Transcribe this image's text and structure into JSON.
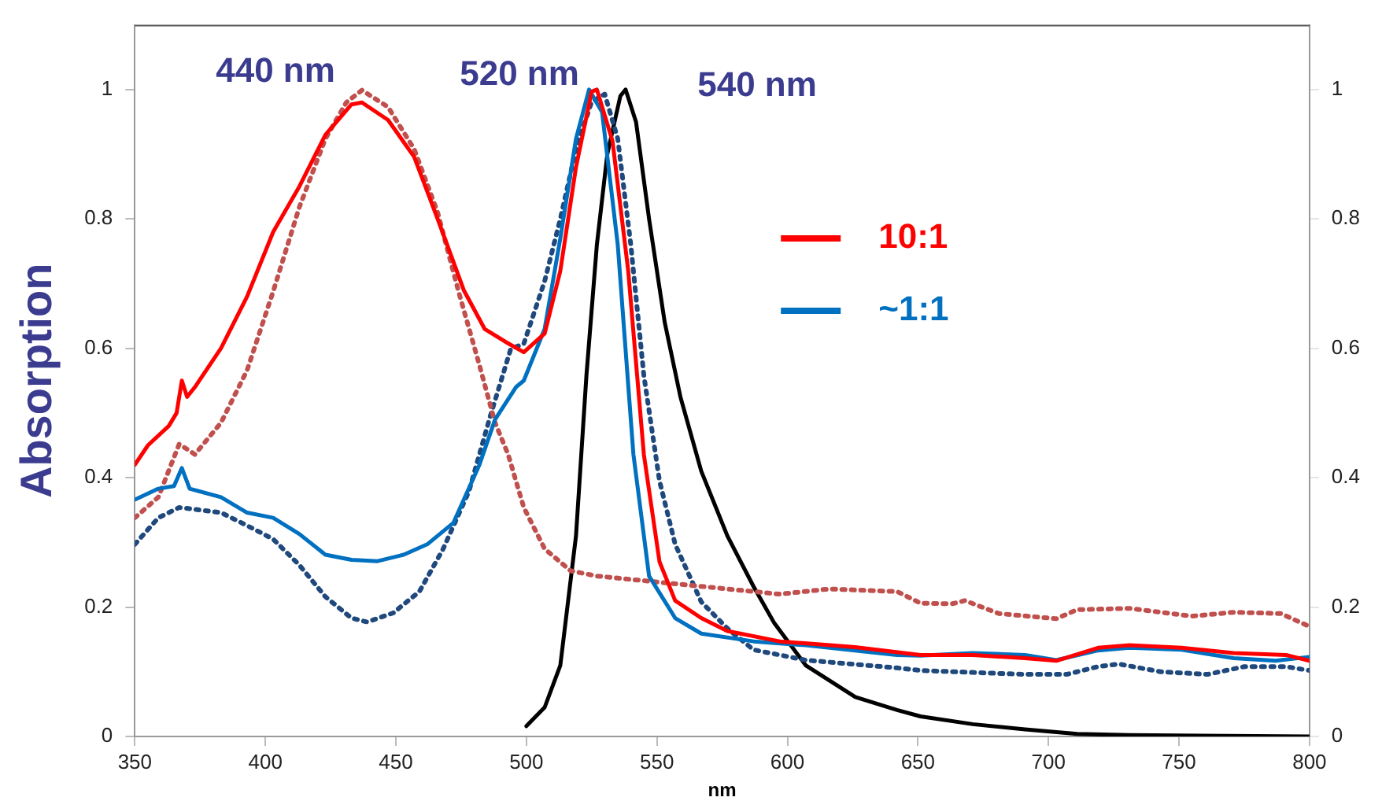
{
  "chart_data": {
    "type": "line",
    "xlabel": "nm",
    "ylabel": "Absorption",
    "xlim": [
      350,
      800
    ],
    "xticks": [
      350,
      400,
      450,
      500,
      550,
      600,
      650,
      700,
      750,
      800
    ],
    "ylim": [
      0,
      1.1
    ],
    "yticks": [
      0,
      0.2,
      0.4,
      0.6,
      0.8,
      1
    ],
    "y2lim": [
      0,
      1.1
    ],
    "y2ticks": [
      0,
      0.2,
      0.4,
      0.6,
      0.8,
      1
    ],
    "grid": false,
    "legend": "right",
    "marker": "none",
    "annotations": [
      "440 nm",
      "520 nm",
      "540 nm"
    ],
    "series": [
      {
        "name": "10:1",
        "color": "#ff0000",
        "line_style": "solid",
        "x": [
          350,
          355,
          363,
          366,
          368,
          370,
          373,
          383,
          393,
          403,
          413,
          423,
          433,
          437,
          447,
          457,
          466,
          476,
          484,
          492,
          499,
          507,
          513,
          519,
          525,
          527,
          533,
          539,
          545,
          551,
          557,
          567,
          577,
          597,
          626,
          651,
          671,
          691,
          703,
          719,
          731,
          751,
          771,
          791,
          800
        ],
        "values": [
          0.42,
          0.45,
          0.48,
          0.5,
          0.55,
          0.525,
          0.54,
          0.6,
          0.68,
          0.78,
          0.85,
          0.93,
          0.977,
          0.98,
          0.953,
          0.896,
          0.8,
          0.69,
          0.63,
          0.61,
          0.594,
          0.623,
          0.72,
          0.88,
          0.997,
          1,
          0.92,
          0.72,
          0.436,
          0.27,
          0.21,
          0.183,
          0.163,
          0.147,
          0.138,
          0.126,
          0.126,
          0.121,
          0.117,
          0.137,
          0.141,
          0.137,
          0.129,
          0.126,
          0.117
        ]
      },
      {
        "name": "~1:1",
        "color": "#0070c0",
        "line_style": "solid",
        "x": [
          350,
          359,
          365,
          368,
          371,
          383,
          393,
          403,
          413,
          423,
          433,
          443,
          453,
          462,
          472,
          482,
          488,
          496,
          499,
          507,
          513,
          519,
          524,
          529,
          535,
          541,
          547,
          557,
          567,
          587,
          607,
          642,
          651,
          671,
          691,
          703,
          719,
          731,
          751,
          771,
          787,
          800
        ],
        "values": [
          0.366,
          0.383,
          0.387,
          0.415,
          0.383,
          0.37,
          0.346,
          0.338,
          0.313,
          0.281,
          0.273,
          0.271,
          0.281,
          0.297,
          0.33,
          0.42,
          0.49,
          0.54,
          0.55,
          0.63,
          0.77,
          0.924,
          1,
          0.965,
          0.76,
          0.436,
          0.248,
          0.183,
          0.159,
          0.147,
          0.141,
          0.126,
          0.125,
          0.129,
          0.126,
          0.118,
          0.133,
          0.137,
          0.134,
          0.121,
          0.117,
          0.123
        ]
      },
      {
        "color": "#c0504d",
        "line_style": "dotted",
        "x": [
          350,
          359,
          367,
          373,
          383,
          393,
          403,
          413,
          423,
          431,
          437,
          447,
          457,
          466,
          474,
          482,
          488,
          493,
          499,
          507,
          517,
          527,
          547,
          567,
          587,
          597,
          616,
          642,
          651,
          663,
          668,
          681,
          703,
          711,
          731,
          755,
          771,
          789,
          800
        ],
        "values": [
          0.338,
          0.37,
          0.452,
          0.436,
          0.485,
          0.566,
          0.688,
          0.818,
          0.924,
          0.98,
          0.999,
          0.973,
          0.908,
          0.81,
          0.688,
          0.574,
          0.485,
          0.436,
          0.354,
          0.29,
          0.256,
          0.248,
          0.24,
          0.232,
          0.224,
          0.22,
          0.228,
          0.224,
          0.206,
          0.205,
          0.21,
          0.19,
          0.182,
          0.196,
          0.198,
          0.186,
          0.192,
          0.19,
          0.17
        ]
      },
      {
        "color": "#1f497d",
        "line_style": "dotted",
        "x": [
          350,
          359,
          367,
          383,
          393,
          403,
          413,
          423,
          433,
          439,
          449,
          459,
          468,
          478,
          486,
          494,
          499,
          507,
          513,
          519,
          525,
          530,
          535,
          540,
          545,
          551,
          557,
          567,
          577,
          587,
          607,
          642,
          651,
          671,
          691,
          707,
          719,
          727,
          743,
          761,
          775,
          791,
          800
        ],
        "values": [
          0.297,
          0.338,
          0.354,
          0.346,
          0.326,
          0.305,
          0.265,
          0.216,
          0.183,
          0.177,
          0.191,
          0.224,
          0.289,
          0.379,
          0.493,
          0.599,
          0.607,
          0.704,
          0.8,
          0.908,
          0.981,
          0.993,
          0.924,
          0.76,
          0.558,
          0.395,
          0.297,
          0.208,
          0.167,
          0.134,
          0.118,
          0.106,
          0.102,
          0.099,
          0.096,
          0.096,
          0.108,
          0.112,
          0.1,
          0.096,
          0.108,
          0.108,
          0.102
        ]
      },
      {
        "color": "#000000",
        "line_style": "solid",
        "x": [
          500,
          507,
          513,
          519,
          523,
          527,
          531,
          536,
          538,
          542,
          547,
          553,
          559,
          567,
          577,
          587,
          595,
          607,
          626,
          642,
          651,
          671,
          691,
          711,
          731,
          800
        ],
        "values": [
          0.016,
          0.045,
          0.11,
          0.31,
          0.558,
          0.76,
          0.9,
          0.99,
          1,
          0.95,
          0.8,
          0.64,
          0.525,
          0.41,
          0.31,
          0.232,
          0.175,
          0.11,
          0.061,
          0.041,
          0.031,
          0.019,
          0.011,
          0.004,
          0.002,
          0
        ]
      }
    ]
  }
}
